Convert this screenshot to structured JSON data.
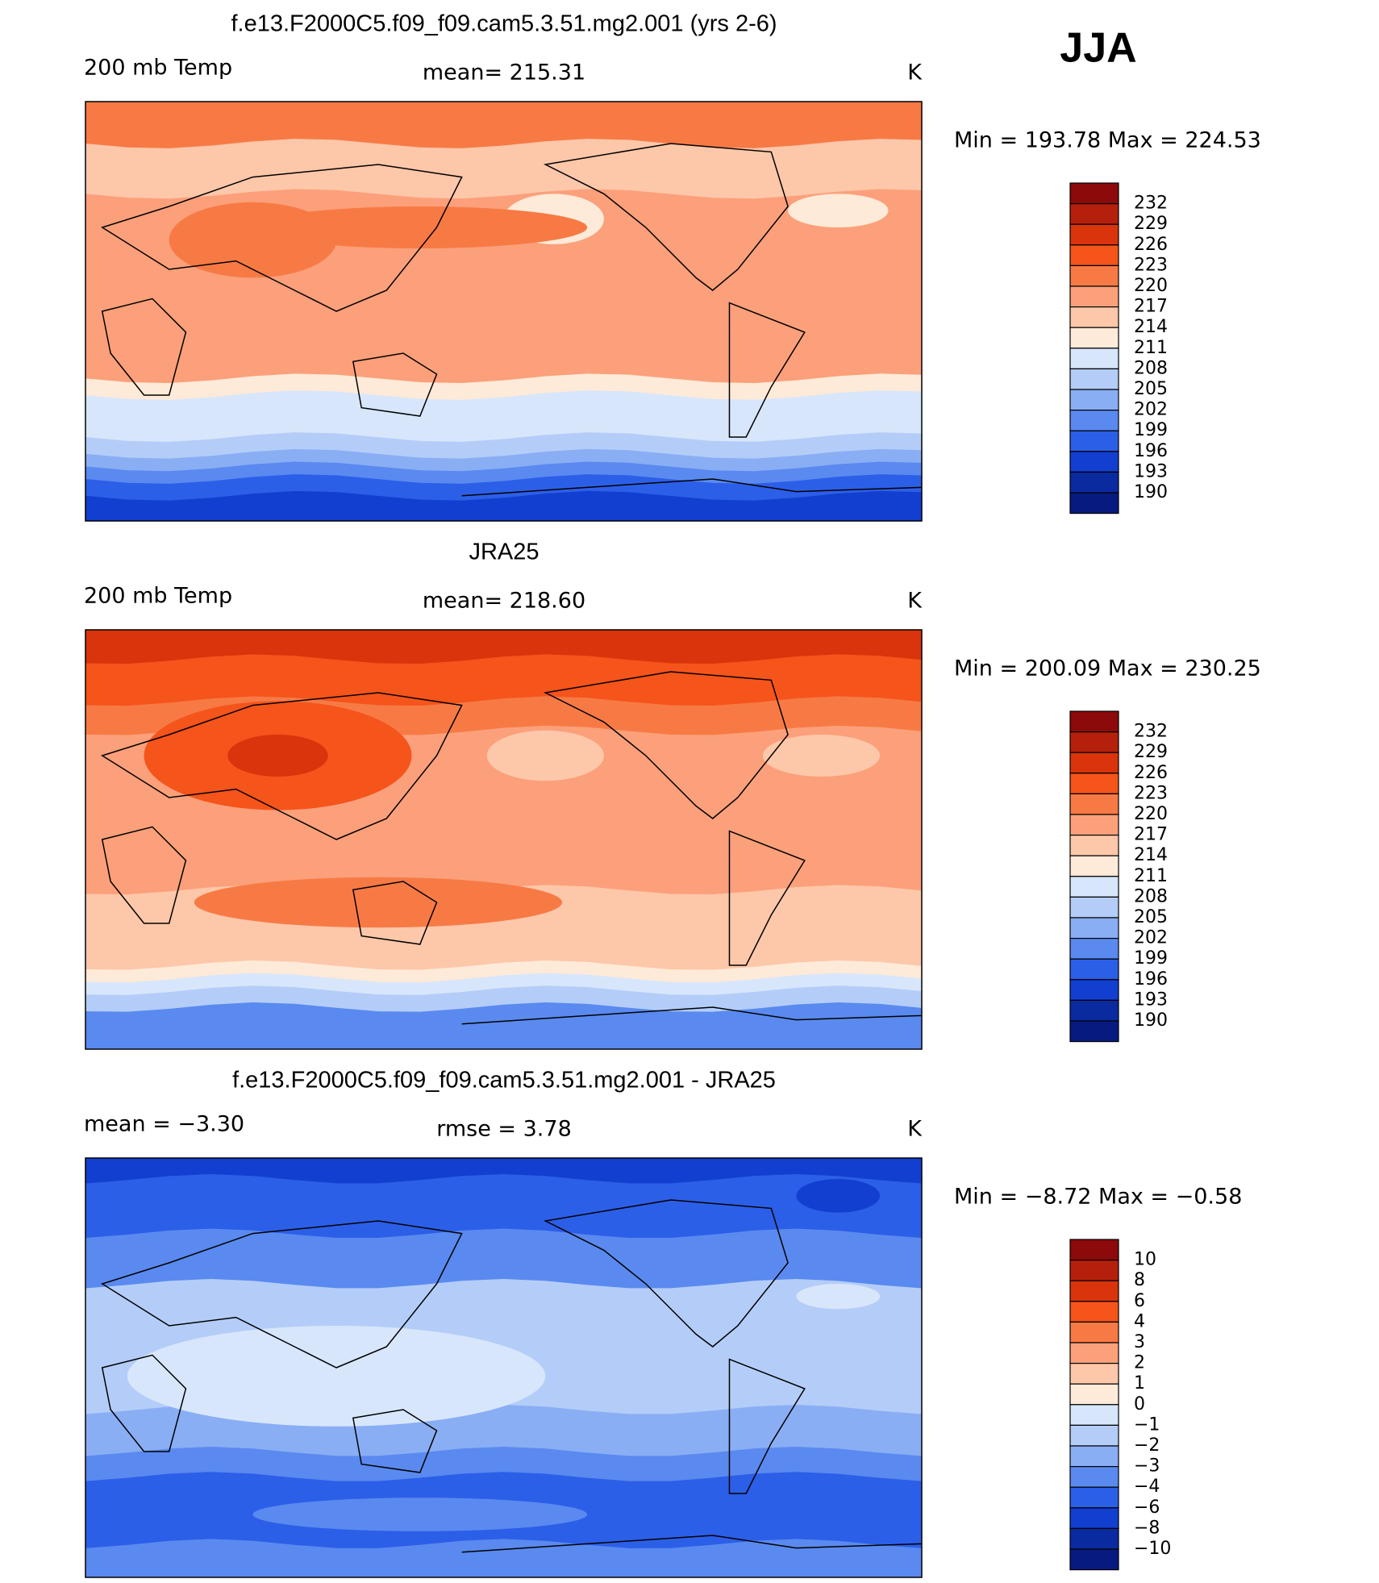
{
  "header": {
    "season": "JJA"
  },
  "panels": [
    {
      "title": "f.e13.F2000C5.f09_f09.cam5.3.51.mg2.001 (yrs 2-6)",
      "left_label": "200 mb Temp",
      "center_label": "mean=  215.31",
      "units": "K",
      "min_max": "Min  =  193.78  Max  =  224.53",
      "colorbar": {
        "labels": [
          "232",
          "229",
          "226",
          "223",
          "220",
          "217",
          "214",
          "211",
          "208",
          "205",
          "202",
          "199",
          "196",
          "193",
          "190"
        ],
        "colors": [
          "#8c0a0a",
          "#b5200d",
          "#d9340c",
          "#f5541b",
          "#f77a45",
          "#fba07a",
          "#fdc7aa",
          "#feead8",
          "#d8e6fb",
          "#b4cdf8",
          "#8aaef4",
          "#5a8aef",
          "#2c5fe8",
          "#123fcf",
          "#0a2aa0",
          "#071a80"
        ]
      }
    },
    {
      "title": "JRA25",
      "left_label": "200 mb Temp",
      "center_label": "mean=  218.60",
      "units": "K",
      "min_max": "Min  =  200.09  Max  =  230.25",
      "colorbar": {
        "labels": [
          "232",
          "229",
          "226",
          "223",
          "220",
          "217",
          "214",
          "211",
          "208",
          "205",
          "202",
          "199",
          "196",
          "193",
          "190"
        ],
        "colors": [
          "#8c0a0a",
          "#b5200d",
          "#d9340c",
          "#f5541b",
          "#f77a45",
          "#fba07a",
          "#fdc7aa",
          "#feead8",
          "#d8e6fb",
          "#b4cdf8",
          "#8aaef4",
          "#5a8aef",
          "#2c5fe8",
          "#123fcf",
          "#0a2aa0",
          "#071a80"
        ]
      }
    },
    {
      "title": "f.e13.F2000C5.f09_f09.cam5.3.51.mg2.001 - JRA25",
      "left_label": "mean =    −3.30",
      "center_label": "rmse =     3.78",
      "units": "K",
      "min_max": "Min  =    −8.72  Max  =    −0.58",
      "colorbar": {
        "labels": [
          "10",
          "8",
          "6",
          "4",
          "3",
          "2",
          "1",
          "0",
          "−1",
          "−2",
          "−3",
          "−4",
          "−6",
          "−8",
          "−10"
        ],
        "colors": [
          "#8c0a0a",
          "#b5200d",
          "#d9340c",
          "#f5541b",
          "#f77a45",
          "#fba07a",
          "#fdc7aa",
          "#feead8",
          "#d8e6fb",
          "#b4cdf8",
          "#8aaef4",
          "#5a8aef",
          "#2c5fe8",
          "#123fcf",
          "#0a2aa0",
          "#071a80"
        ]
      }
    }
  ]
}
